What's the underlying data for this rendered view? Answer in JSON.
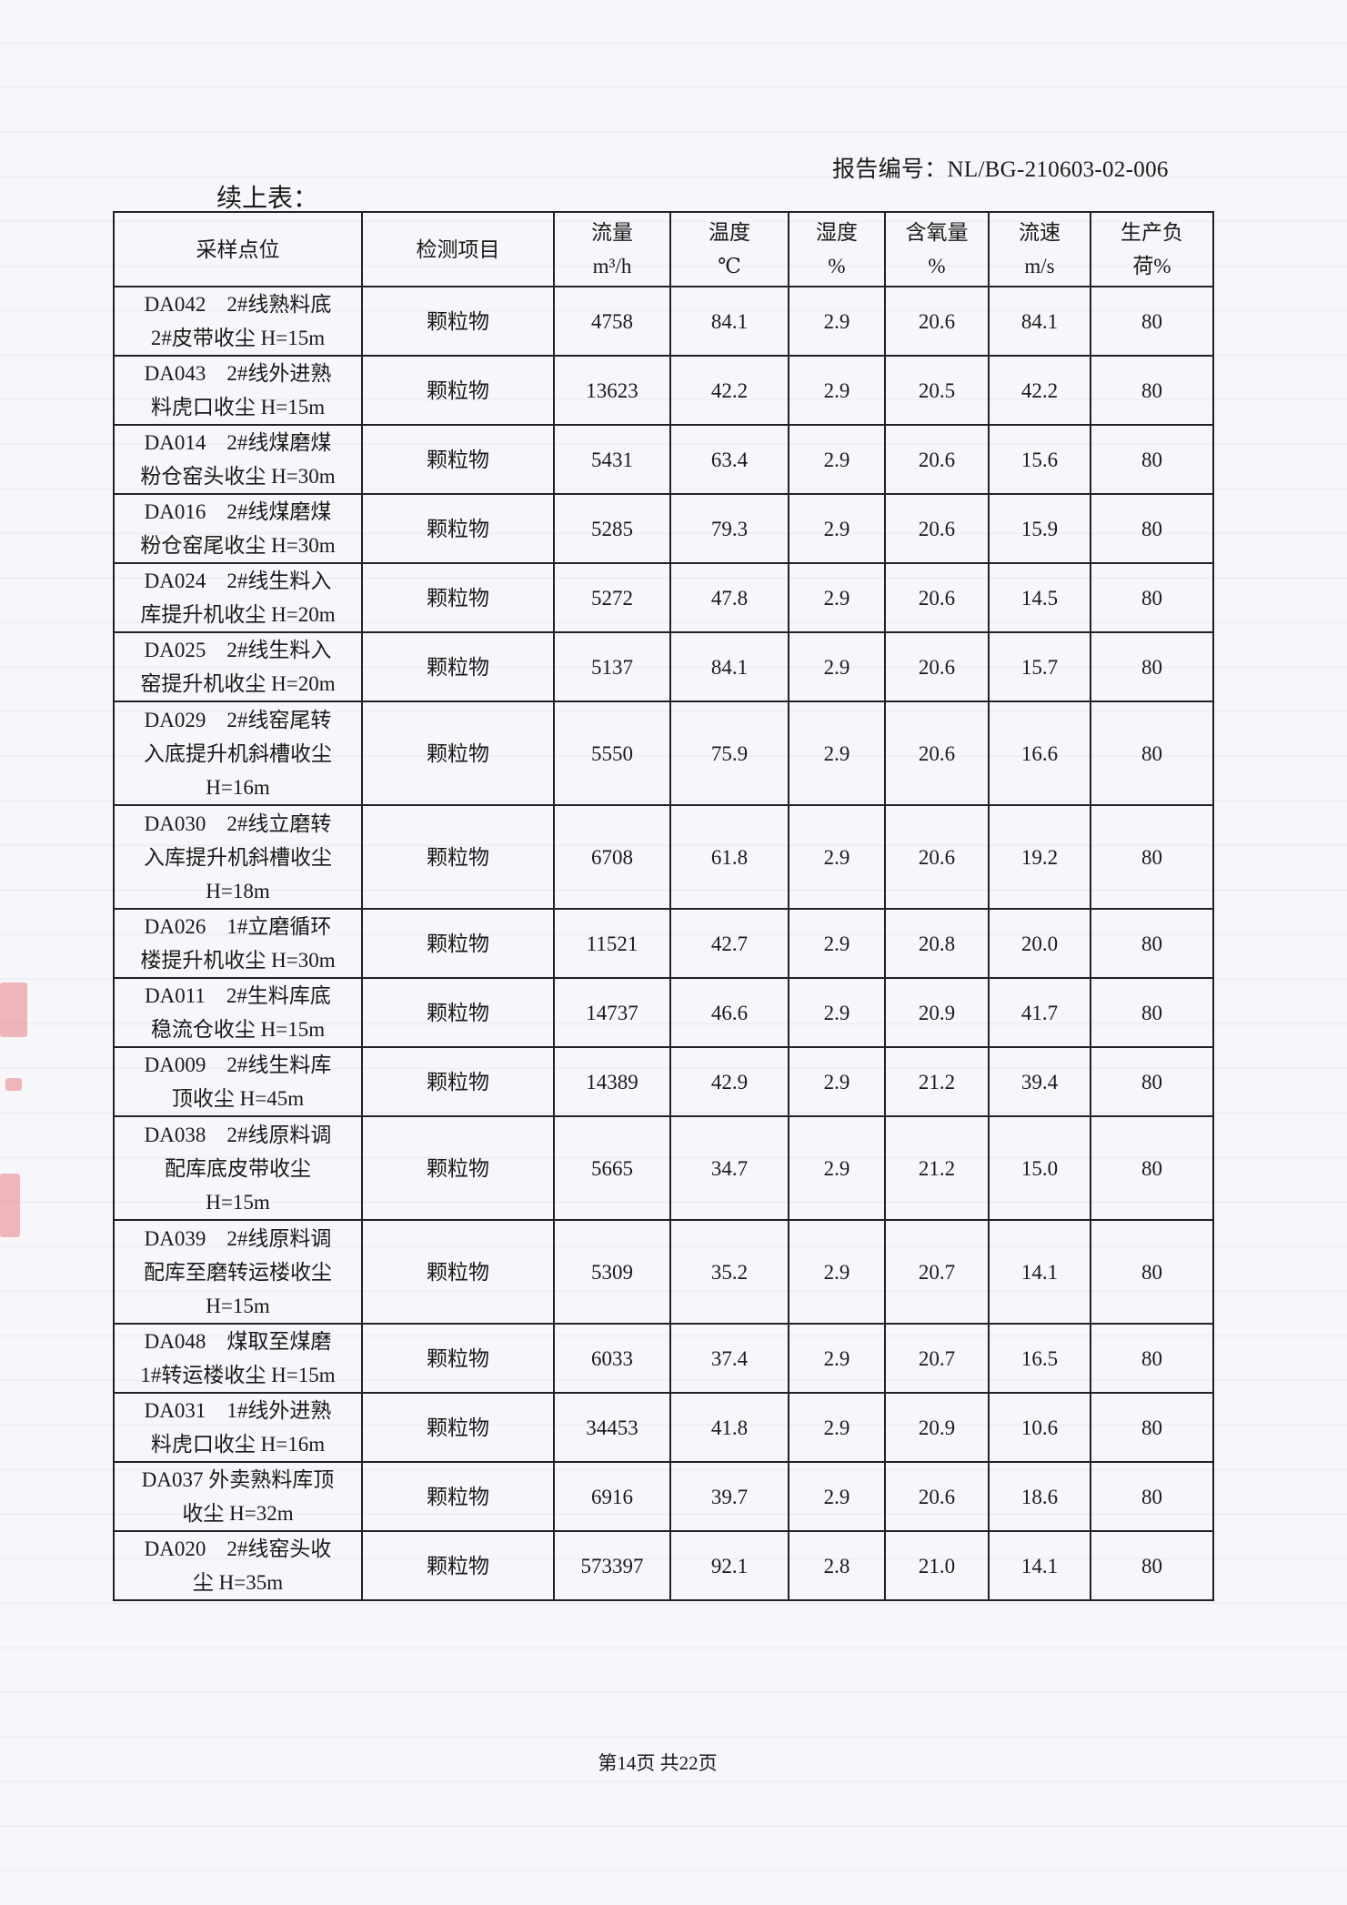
{
  "header": {
    "report_number": "报告编号：NL/BG-210603-02-006",
    "continued": "续上表："
  },
  "table": {
    "columns": [
      {
        "line1": "采样点位",
        "line2": ""
      },
      {
        "line1": "检测项目",
        "line2": ""
      },
      {
        "line1": "流量",
        "line2": "m³/h"
      },
      {
        "line1": "温度",
        "line2": "℃"
      },
      {
        "line1": "湿度",
        "line2": "%"
      },
      {
        "line1": "含氧量",
        "line2": "%"
      },
      {
        "line1": "流速",
        "line2": "m/s"
      },
      {
        "line1": "生产负",
        "line2": "荷%"
      }
    ],
    "rows": [
      {
        "location": [
          "DA042　2#线熟料底",
          "2#皮带收尘 H=15m"
        ],
        "item": "颗粒物",
        "flow": "4758",
        "temp": "84.1",
        "humidity": "2.9",
        "oxygen": "20.6",
        "velocity": "84.1",
        "load": "80"
      },
      {
        "location": [
          "DA043　2#线外进熟",
          "料虎口收尘 H=15m"
        ],
        "item": "颗粒物",
        "flow": "13623",
        "temp": "42.2",
        "humidity": "2.9",
        "oxygen": "20.5",
        "velocity": "42.2",
        "load": "80"
      },
      {
        "location": [
          "DA014　2#线煤磨煤",
          "粉仓窑头收尘 H=30m"
        ],
        "item": "颗粒物",
        "flow": "5431",
        "temp": "63.4",
        "humidity": "2.9",
        "oxygen": "20.6",
        "velocity": "15.6",
        "load": "80"
      },
      {
        "location": [
          "DA016　2#线煤磨煤",
          "粉仓窑尾收尘 H=30m"
        ],
        "item": "颗粒物",
        "flow": "5285",
        "temp": "79.3",
        "humidity": "2.9",
        "oxygen": "20.6",
        "velocity": "15.9",
        "load": "80"
      },
      {
        "location": [
          "DA024　2#线生料入",
          "库提升机收尘 H=20m"
        ],
        "item": "颗粒物",
        "flow": "5272",
        "temp": "47.8",
        "humidity": "2.9",
        "oxygen": "20.6",
        "velocity": "14.5",
        "load": "80"
      },
      {
        "location": [
          "DA025　2#线生料入",
          "窑提升机收尘 H=20m"
        ],
        "item": "颗粒物",
        "flow": "5137",
        "temp": "84.1",
        "humidity": "2.9",
        "oxygen": "20.6",
        "velocity": "15.7",
        "load": "80"
      },
      {
        "location": [
          "DA029　2#线窑尾转",
          "入底提升机斜槽收尘",
          "H=16m"
        ],
        "item": "颗粒物",
        "flow": "5550",
        "temp": "75.9",
        "humidity": "2.9",
        "oxygen": "20.6",
        "velocity": "16.6",
        "load": "80"
      },
      {
        "location": [
          "DA030　2#线立磨转",
          "入库提升机斜槽收尘",
          "H=18m"
        ],
        "item": "颗粒物",
        "flow": "6708",
        "temp": "61.8",
        "humidity": "2.9",
        "oxygen": "20.6",
        "velocity": "19.2",
        "load": "80"
      },
      {
        "location": [
          "DA026　1#立磨循环",
          "楼提升机收尘 H=30m"
        ],
        "item": "颗粒物",
        "flow": "11521",
        "temp": "42.7",
        "humidity": "2.9",
        "oxygen": "20.8",
        "velocity": "20.0",
        "load": "80"
      },
      {
        "location": [
          "DA011　2#生料库底",
          "稳流仓收尘 H=15m"
        ],
        "item": "颗粒物",
        "flow": "14737",
        "temp": "46.6",
        "humidity": "2.9",
        "oxygen": "20.9",
        "velocity": "41.7",
        "load": "80"
      },
      {
        "location": [
          "DA009　2#线生料库",
          "顶收尘 H=45m"
        ],
        "item": "颗粒物",
        "flow": "14389",
        "temp": "42.9",
        "humidity": "2.9",
        "oxygen": "21.2",
        "velocity": "39.4",
        "load": "80"
      },
      {
        "location": [
          "DA038　2#线原料调",
          "配库底皮带收尘",
          "H=15m"
        ],
        "item": "颗粒物",
        "flow": "5665",
        "temp": "34.7",
        "humidity": "2.9",
        "oxygen": "21.2",
        "velocity": "15.0",
        "load": "80"
      },
      {
        "location": [
          "DA039　2#线原料调",
          "配库至磨转运楼收尘",
          "H=15m"
        ],
        "item": "颗粒物",
        "flow": "5309",
        "temp": "35.2",
        "humidity": "2.9",
        "oxygen": "20.7",
        "velocity": "14.1",
        "load": "80"
      },
      {
        "location": [
          "DA048　煤取至煤磨",
          "1#转运楼收尘 H=15m"
        ],
        "item": "颗粒物",
        "flow": "6033",
        "temp": "37.4",
        "humidity": "2.9",
        "oxygen": "20.7",
        "velocity": "16.5",
        "load": "80"
      },
      {
        "location": [
          "DA031　1#线外进熟",
          "料虎口收尘 H=16m"
        ],
        "item": "颗粒物",
        "flow": "34453",
        "temp": "41.8",
        "humidity": "2.9",
        "oxygen": "20.9",
        "velocity": "10.6",
        "load": "80"
      },
      {
        "location": [
          "DA037 外卖熟料库顶",
          "收尘 H=32m"
        ],
        "item": "颗粒物",
        "flow": "6916",
        "temp": "39.7",
        "humidity": "2.9",
        "oxygen": "20.6",
        "velocity": "18.6",
        "load": "80"
      },
      {
        "location": [
          "DA020　2#线窑头收",
          "尘 H=35m"
        ],
        "item": "颗粒物",
        "flow": "573397",
        "temp": "92.1",
        "humidity": "2.8",
        "oxygen": "21.0",
        "velocity": "14.1",
        "load": "80"
      }
    ]
  },
  "footer": {
    "page": "第14页  共22页"
  },
  "colors": {
    "stamp": "#dc3c46"
  }
}
